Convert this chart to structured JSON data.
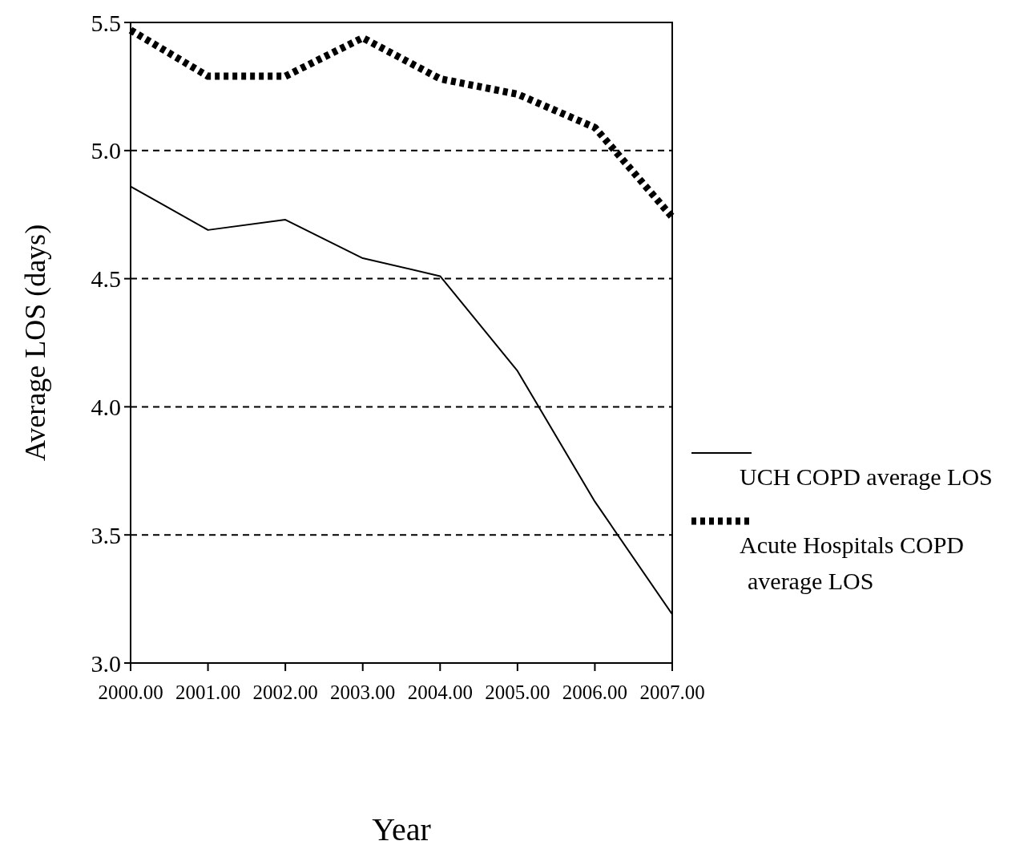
{
  "chart_data": {
    "type": "line",
    "xlabel": "Year",
    "ylabel": "Average LOS (days)",
    "x": [
      2000,
      2001,
      2002,
      2003,
      2004,
      2005,
      2006,
      2007
    ],
    "xlim": [
      2000,
      2007
    ],
    "xticks": [
      {
        "value": 2000,
        "label": "2000.00"
      },
      {
        "value": 2001,
        "label": "2001.00"
      },
      {
        "value": 2002,
        "label": "2002.00"
      },
      {
        "value": 2003,
        "label": "2003.00"
      },
      {
        "value": 2004,
        "label": "2004.00"
      },
      {
        "value": 2005,
        "label": "2005.00"
      },
      {
        "value": 2006,
        "label": "2006.00"
      },
      {
        "value": 2007,
        "label": "2007.00"
      }
    ],
    "ylim": [
      3.0,
      5.5
    ],
    "yticks": [
      {
        "value": 3,
        "label": "3.0"
      },
      {
        "value": 3.5,
        "label": "3.5"
      },
      {
        "value": 4,
        "label": "4.0"
      },
      {
        "value": 4.5,
        "label": "4.5"
      },
      {
        "value": 5,
        "label": "5.0"
      },
      {
        "value": 5.5,
        "label": "5.5"
      }
    ],
    "grid": "y",
    "legend": "right",
    "series": [
      {
        "name": "UCH COPD average LOS",
        "color": "#000000",
        "line_style": "solid",
        "values": [
          4.86,
          4.69,
          4.73,
          4.58,
          4.51,
          4.14,
          3.63,
          3.19
        ]
      },
      {
        "name": "Acute Hospitals COPD average LOS",
        "color": "#000000",
        "line_style": "dotted",
        "values": [
          5.47,
          5.29,
          5.29,
          5.44,
          5.28,
          5.22,
          5.09,
          4.74
        ]
      }
    ]
  }
}
